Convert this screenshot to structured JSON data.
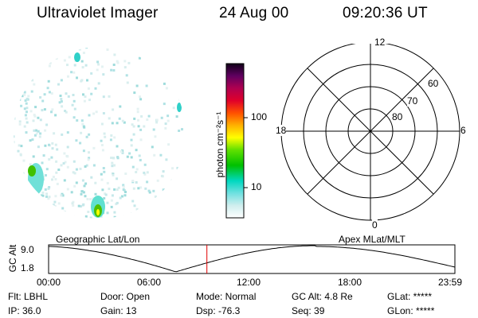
{
  "header": {
    "instrument": "Ultraviolet Imager",
    "date": "24 Aug 00",
    "time": "09:20:36 UT"
  },
  "colorbar": {
    "unit_label": "photon cm⁻²s⁻¹",
    "ticks": [
      "100",
      "10"
    ]
  },
  "polar": {
    "mlt_labels": {
      "top": "12",
      "left": "18",
      "right": "6",
      "bottom": "0"
    },
    "lat_labels": [
      "60",
      "70",
      "80"
    ]
  },
  "timeline": {
    "left_title": "Geographic Lat/Lon",
    "right_title": "Apex MLat/MLT",
    "ylabel": "GC Alt",
    "ymax": "9.0",
    "ymin": "1.8",
    "xticks": [
      "00:00",
      "06:00",
      "12:00",
      "18:00",
      "23:59"
    ],
    "marker_color": "#e00000"
  },
  "info": {
    "row1": {
      "flt": "Flt: LBHL",
      "door": "Door: Open",
      "mode": "Mode: Normal",
      "gcalt": "GC Alt: 4.8 Re",
      "glat": "GLat: *****"
    },
    "row2": {
      "ip": "IP: 36.0",
      "gain": "Gain: 13",
      "dsp": "Dsp:  -76.3",
      "seq": "Seq: 39",
      "glon": "GLon: *****"
    }
  }
}
